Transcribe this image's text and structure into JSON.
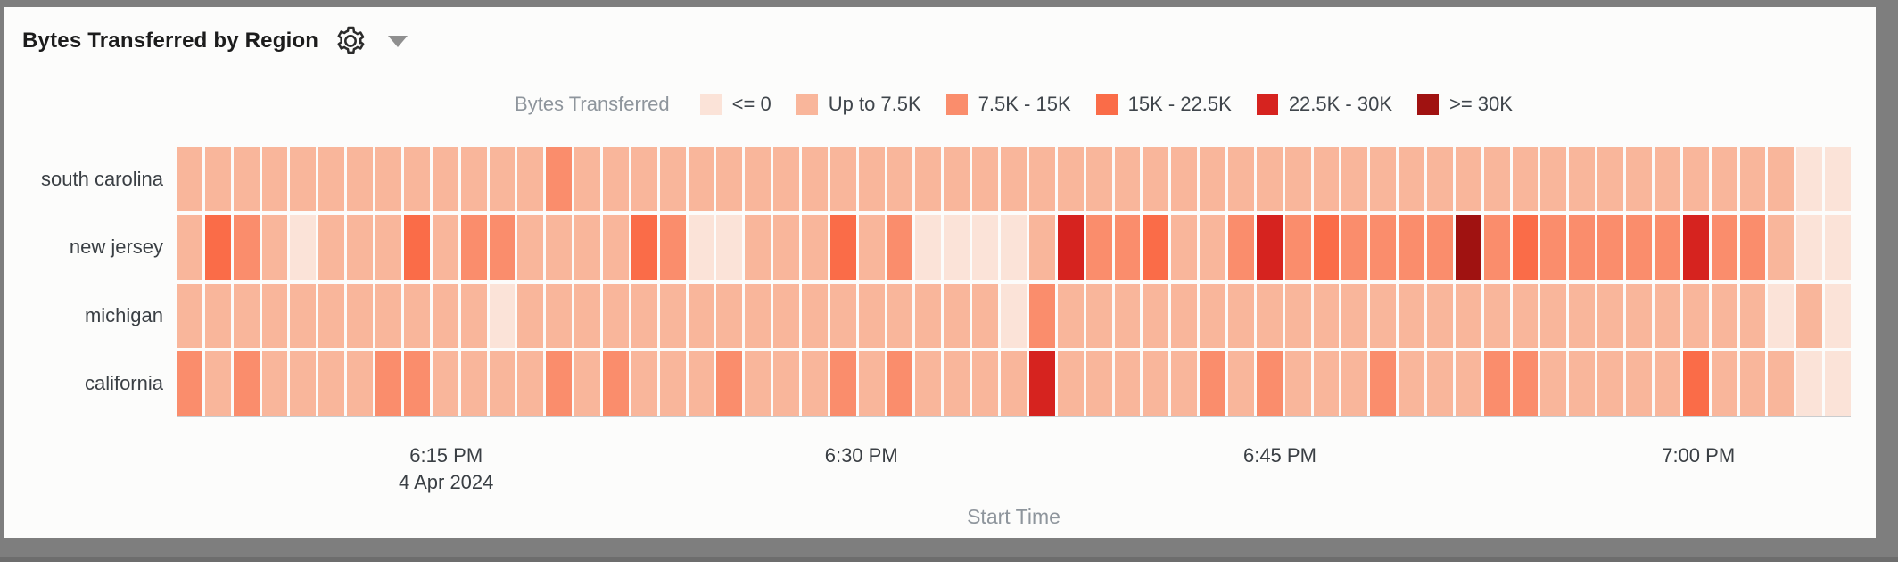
{
  "header": {
    "title": "Bytes Transferred by Region",
    "gear_icon": "gear-icon",
    "caret_icon": "chevron-down-icon"
  },
  "legend": {
    "title": "Bytes Transferred",
    "items": [
      {
        "label": "<= 0",
        "color": "#fbe3d8"
      },
      {
        "label": "Up to 7.5K",
        "color": "#f9b69b"
      },
      {
        "label": "7.5K - 15K",
        "color": "#fa8d6c"
      },
      {
        "label": "15K - 22.5K",
        "color": "#fa6c48"
      },
      {
        "label": "22.5K - 30K",
        "color": "#d6231f"
      },
      {
        "label": ">= 30K",
        "color": "#a01211"
      }
    ]
  },
  "chart_data": {
    "type": "heatmap",
    "title": "Bytes Transferred by Region",
    "xlabel": "Start Time",
    "legend_title": "Bytes Transferred",
    "columns": 59,
    "grid": "white gaps between cells",
    "buckets": [
      {
        "level": 1,
        "label": "<= 0",
        "color": "#fbe3d8"
      },
      {
        "level": 2,
        "label": "Up to 7.5K",
        "color": "#f9b69b"
      },
      {
        "level": 3,
        "label": "7.5K - 15K",
        "color": "#fa8d6c"
      },
      {
        "level": 4,
        "label": "15K - 22.5K",
        "color": "#fa6c48"
      },
      {
        "level": 5,
        "label": "22.5K - 30K",
        "color": "#d6231f"
      },
      {
        "level": 6,
        "label": ">= 30K",
        "color": "#a01211"
      }
    ],
    "x_ticks": [
      {
        "label": "6:15 PM",
        "sublabel": "4 Apr 2024",
        "pos": 0.161
      },
      {
        "label": "6:30 PM",
        "sublabel": "",
        "pos": 0.409
      },
      {
        "label": "6:45 PM",
        "sublabel": "",
        "pos": 0.659
      },
      {
        "label": "7:00 PM",
        "sublabel": "",
        "pos": 0.909
      }
    ],
    "rows": [
      {
        "name": "south carolina",
        "levels": [
          2,
          2,
          2,
          2,
          2,
          2,
          2,
          2,
          2,
          2,
          2,
          2,
          2,
          3,
          2,
          2,
          2,
          2,
          2,
          2,
          2,
          2,
          2,
          2,
          2,
          2,
          2,
          2,
          2,
          2,
          2,
          2,
          2,
          2,
          2,
          2,
          2,
          2,
          2,
          2,
          2,
          2,
          2,
          2,
          2,
          2,
          2,
          2,
          2,
          2,
          2,
          2,
          2,
          2,
          2,
          2,
          2,
          1,
          1
        ]
      },
      {
        "name": "new jersey",
        "levels": [
          2,
          4,
          3,
          2,
          1,
          2,
          2,
          2,
          4,
          2,
          3,
          3,
          2,
          2,
          2,
          2,
          4,
          3,
          1,
          1,
          2,
          2,
          2,
          4,
          2,
          3,
          1,
          1,
          1,
          1,
          2,
          5,
          3,
          3,
          4,
          2,
          2,
          3,
          5,
          3,
          4,
          3,
          3,
          3,
          3,
          6,
          3,
          4,
          3,
          3,
          3,
          3,
          3,
          5,
          3,
          3,
          2,
          1,
          1
        ]
      },
      {
        "name": "michigan",
        "levels": [
          2,
          2,
          2,
          2,
          2,
          2,
          2,
          2,
          2,
          2,
          2,
          1,
          2,
          2,
          2,
          2,
          2,
          2,
          2,
          2,
          2,
          2,
          2,
          2,
          2,
          2,
          2,
          2,
          2,
          1,
          3,
          2,
          2,
          2,
          2,
          2,
          2,
          2,
          2,
          2,
          2,
          2,
          2,
          2,
          2,
          2,
          2,
          2,
          2,
          2,
          2,
          2,
          2,
          2,
          2,
          2,
          1,
          2,
          1
        ]
      },
      {
        "name": "california",
        "levels": [
          3,
          2,
          3,
          2,
          2,
          2,
          2,
          3,
          3,
          2,
          2,
          2,
          2,
          3,
          2,
          3,
          2,
          2,
          2,
          3,
          2,
          2,
          2,
          3,
          2,
          3,
          2,
          2,
          2,
          2,
          5,
          2,
          2,
          2,
          2,
          2,
          3,
          2,
          3,
          2,
          2,
          2,
          3,
          2,
          2,
          2,
          3,
          3,
          2,
          2,
          2,
          2,
          2,
          4,
          2,
          2,
          2,
          1,
          1
        ]
      }
    ]
  }
}
